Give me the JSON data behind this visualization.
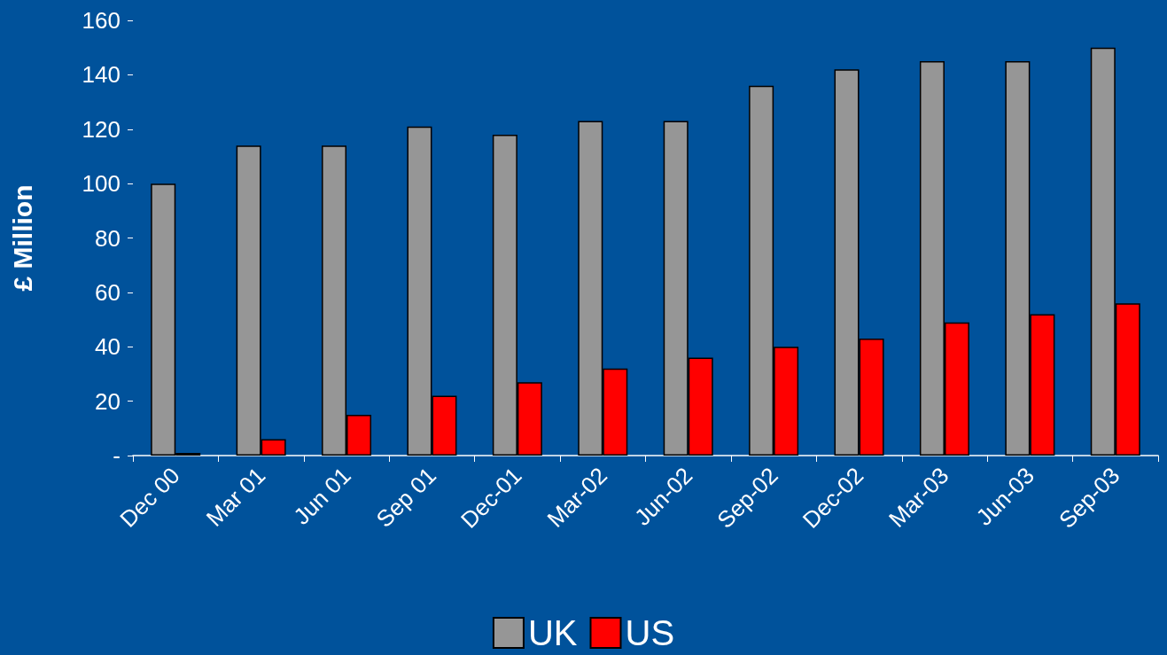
{
  "chart_data": {
    "type": "bar",
    "ylabel": "£ Million",
    "categories": [
      "Dec 00",
      "Mar 01",
      "Jun 01",
      "Sep 01",
      "Dec-01",
      "Mar-02",
      "Jun-02",
      "Sep-02",
      "Dec-02",
      "Mar-03",
      "Jun-03",
      "Sep-03"
    ],
    "series": [
      {
        "name": "UK",
        "color": "#969696",
        "values": [
          100,
          114,
          114,
          121,
          118,
          123,
          123,
          136,
          142,
          145,
          145,
          150
        ]
      },
      {
        "name": "US",
        "color": "#ff0000",
        "values": [
          1,
          6,
          15,
          22,
          27,
          32,
          36,
          40,
          43,
          49,
          52,
          56
        ]
      }
    ],
    "ylim": [
      0,
      160
    ],
    "yticks": [
      {
        "value": 0,
        "label": "-"
      },
      20,
      40,
      60,
      80,
      100,
      120,
      140,
      160
    ],
    "grid": false,
    "legend": "bottom"
  }
}
